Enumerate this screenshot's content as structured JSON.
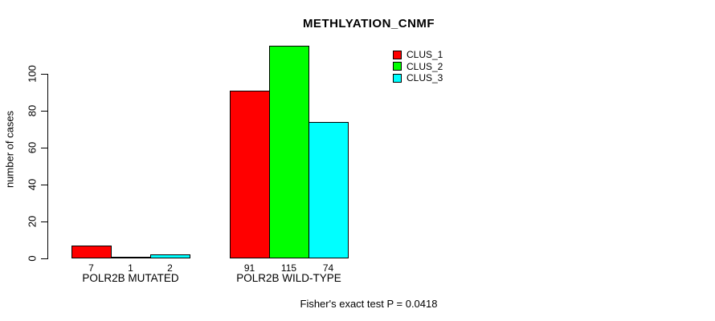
{
  "chart_data": {
    "type": "bar",
    "title": "METHLYATION_CNMF",
    "categories": [
      "POLR2B MUTATED",
      "POLR2B WILD-TYPE"
    ],
    "series": [
      {
        "name": "CLUS_1",
        "color": "#ff0000",
        "values": [
          7,
          91
        ]
      },
      {
        "name": "CLUS_2",
        "color": "#00ff00",
        "values": [
          1,
          115
        ]
      },
      {
        "name": "CLUS_3",
        "color": "#00ffff",
        "values": [
          2,
          74
        ]
      }
    ],
    "bar_value_labels": [
      [
        7,
        1,
        2
      ],
      [
        91,
        115,
        74
      ]
    ],
    "xlabel": "",
    "ylabel": "number of cases",
    "yticks": [
      0,
      20,
      40,
      60,
      80,
      100
    ],
    "ylim": [
      0,
      115
    ],
    "grid": false,
    "legend_position": "top-right",
    "annotation": "Fisher's exact test P = 0.0418"
  }
}
